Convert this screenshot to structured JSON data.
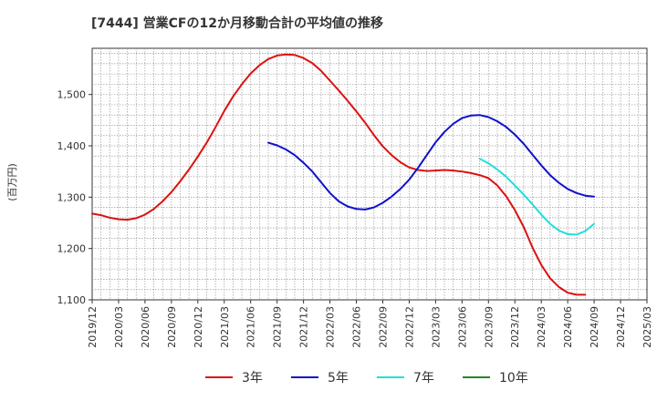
{
  "chart_data": {
    "type": "line",
    "title": "[7444]  営業CFの12か月移動合計の平均値の推移",
    "ylabel": "(百万円)",
    "xlabel": "",
    "ylim": [
      1100,
      1590
    ],
    "yticks": [
      1100,
      1200,
      1300,
      1400,
      1500
    ],
    "ytick_labels": [
      "1,100",
      "1,200",
      "1,300",
      "1,400",
      "1,500"
    ],
    "xlim": [
      "2019-12",
      "2025-03"
    ],
    "xtick_labels": [
      "2019/12",
      "2020/03",
      "2020/06",
      "2020/09",
      "2020/12",
      "2021/03",
      "2021/06",
      "2021/09",
      "2021/12",
      "2022/03",
      "2022/06",
      "2022/09",
      "2022/12",
      "2023/03",
      "2023/06",
      "2023/09",
      "2023/12",
      "2024/03",
      "2024/06",
      "2024/09",
      "2024/12",
      "2025/03"
    ],
    "grid": true,
    "legend_position": "bottom",
    "series": [
      {
        "name": "3年",
        "color": "#dd1111",
        "x": [
          "2019-12",
          "2020-01",
          "2020-02",
          "2020-03",
          "2020-04",
          "2020-05",
          "2020-06",
          "2020-07",
          "2020-08",
          "2020-09",
          "2020-10",
          "2020-11",
          "2020-12",
          "2021-01",
          "2021-02",
          "2021-03",
          "2021-04",
          "2021-05",
          "2021-06",
          "2021-07",
          "2021-08",
          "2021-09",
          "2021-10",
          "2021-11",
          "2021-12",
          "2022-01",
          "2022-02",
          "2022-03",
          "2022-04",
          "2022-05",
          "2022-06",
          "2022-07",
          "2022-08",
          "2022-09",
          "2022-10",
          "2022-11",
          "2022-12",
          "2023-01",
          "2023-02",
          "2023-03",
          "2023-04",
          "2023-05",
          "2023-06",
          "2023-07",
          "2023-08",
          "2023-09",
          "2023-10",
          "2023-11",
          "2023-12",
          "2024-01",
          "2024-02",
          "2024-03",
          "2024-04",
          "2024-05",
          "2024-06",
          "2024-07",
          "2024-08",
          "2024-09"
        ],
        "values": [
          1268,
          1265,
          1260,
          1257,
          1256,
          1259,
          1266,
          1277,
          1292,
          1310,
          1331,
          1354,
          1379,
          1406,
          1436,
          1468,
          1496,
          1520,
          1541,
          1557,
          1569,
          1576,
          1578,
          1577,
          1571,
          1561,
          1546,
          1527,
          1508,
          1488,
          1467,
          1445,
          1421,
          1399,
          1382,
          1368,
          1358,
          1353,
          1351,
          1352,
          1353,
          1352,
          1350,
          1347,
          1343,
          1337,
          1323,
          1302,
          1275,
          1242,
          1202,
          1168,
          1142,
          1125,
          1114,
          1110,
          1110,
          null
        ]
      },
      {
        "name": "5年",
        "color": "#1111cc",
        "x": [
          "2021-08",
          "2021-09",
          "2021-10",
          "2021-11",
          "2021-12",
          "2022-01",
          "2022-02",
          "2022-03",
          "2022-04",
          "2022-05",
          "2022-06",
          "2022-07",
          "2022-08",
          "2022-09",
          "2022-10",
          "2022-11",
          "2022-12",
          "2023-01",
          "2023-02",
          "2023-03",
          "2023-04",
          "2023-05",
          "2023-06",
          "2023-07",
          "2023-08",
          "2023-09",
          "2023-10",
          "2023-11",
          "2023-12",
          "2024-01",
          "2024-02",
          "2024-03",
          "2024-04",
          "2024-05",
          "2024-06",
          "2024-07",
          "2024-08",
          "2024-09"
        ],
        "values": [
          1406,
          1401,
          1393,
          1382,
          1367,
          1350,
          1329,
          1308,
          1292,
          1282,
          1277,
          1276,
          1280,
          1289,
          1301,
          1316,
          1334,
          1357,
          1382,
          1407,
          1427,
          1443,
          1454,
          1459,
          1460,
          1456,
          1448,
          1437,
          1422,
          1404,
          1383,
          1362,
          1343,
          1328,
          1316,
          1308,
          1303,
          1301
        ]
      },
      {
        "name": "7年",
        "color": "#22dddd",
        "x": [
          "2023-08",
          "2023-09",
          "2023-10",
          "2023-11",
          "2023-12",
          "2024-01",
          "2024-02",
          "2024-03",
          "2024-04",
          "2024-05",
          "2024-06",
          "2024-07",
          "2024-08",
          "2024-09"
        ],
        "values": [
          1375,
          1366,
          1354,
          1340,
          1323,
          1305,
          1286,
          1266,
          1248,
          1235,
          1228,
          1227,
          1234,
          1248
        ]
      },
      {
        "name": "10年",
        "color": "#228822",
        "x": [],
        "values": []
      }
    ]
  }
}
